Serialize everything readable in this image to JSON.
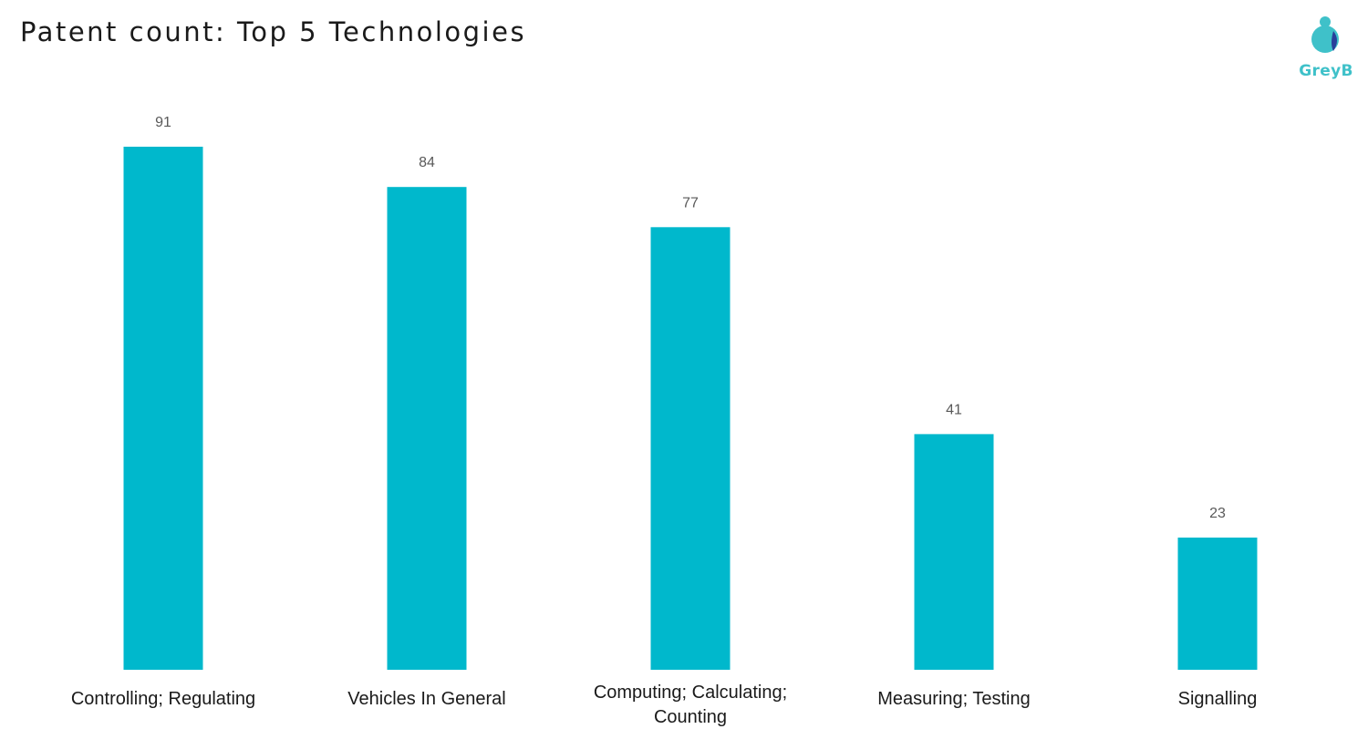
{
  "title": "Patent count: Top 5 Technologies",
  "logo": {
    "text": "GreyB",
    "colors": {
      "primary": "#3fc1c9",
      "secondary": "#2a3f9a"
    }
  },
  "colors": {
    "bar": "#00b8cc",
    "value_label": "#595959",
    "category_label": "#1a1a1a"
  },
  "chart_data": {
    "type": "bar",
    "title": "Patent count: Top 5 Technologies",
    "categories": [
      "Controlling; Regulating",
      "Vehicles In General",
      "Computing; Calculating; Counting",
      "Measuring; Testing",
      "Signalling"
    ],
    "values": [
      91,
      84,
      77,
      41,
      23
    ],
    "data_labels": [
      "91",
      "84",
      "77",
      "41",
      "23"
    ],
    "xlabel": "",
    "ylabel": "",
    "ylim": [
      0,
      91
    ],
    "grid": false,
    "legend": "none"
  }
}
